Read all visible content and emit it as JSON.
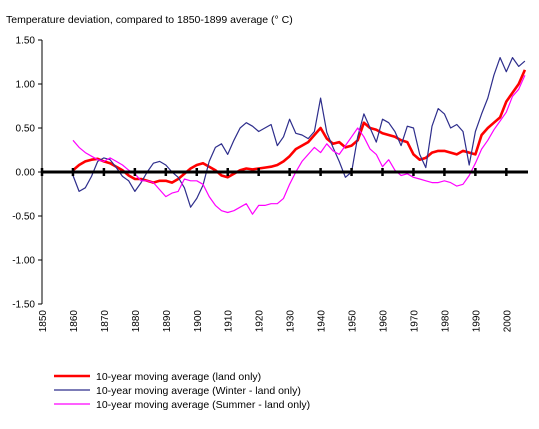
{
  "chart_data": {
    "type": "line",
    "title": "Temperature deviation, compared to 1850-1899 average (° C)",
    "xlabel": "",
    "ylabel": "",
    "xlim": [
      1850,
      2007
    ],
    "ylim": [
      -1.5,
      1.5
    ],
    "x_ticks": [
      "1850",
      "1860",
      "1870",
      "1880",
      "1890",
      "1900",
      "1910",
      "1920",
      "1930",
      "1940",
      "1950",
      "1960",
      "1970",
      "1980",
      "1990",
      "2000"
    ],
    "y_ticks": [
      "1.50",
      "1.00",
      "0.50",
      "0.00",
      "-0.50",
      "-1.00",
      "-1.50"
    ],
    "grid": false,
    "legend_position": "bottom-left",
    "series": [
      {
        "name": "10-year moving average (land only)",
        "color": "#ff0000",
        "x": [
          1860,
          1862,
          1864,
          1866,
          1868,
          1870,
          1872,
          1874,
          1876,
          1878,
          1880,
          1882,
          1884,
          1886,
          1888,
          1890,
          1892,
          1894,
          1896,
          1898,
          1900,
          1902,
          1904,
          1906,
          1908,
          1910,
          1912,
          1914,
          1916,
          1918,
          1920,
          1922,
          1924,
          1926,
          1928,
          1930,
          1932,
          1934,
          1936,
          1938,
          1940,
          1942,
          1944,
          1946,
          1948,
          1950,
          1952,
          1954,
          1956,
          1958,
          1960,
          1962,
          1964,
          1966,
          1968,
          1970,
          1972,
          1974,
          1976,
          1978,
          1980,
          1982,
          1984,
          1986,
          1988,
          1990,
          1992,
          1994,
          1996,
          1998,
          2000,
          2002,
          2004,
          2006
        ],
        "values": [
          0.02,
          0.08,
          0.12,
          0.14,
          0.15,
          0.12,
          0.1,
          0.06,
          0.02,
          -0.04,
          -0.08,
          -0.08,
          -0.1,
          -0.12,
          -0.1,
          -0.1,
          -0.12,
          -0.08,
          -0.02,
          0.04,
          0.08,
          0.1,
          0.06,
          0.02,
          -0.04,
          -0.06,
          -0.02,
          0.02,
          0.04,
          0.03,
          0.04,
          0.05,
          0.06,
          0.08,
          0.12,
          0.18,
          0.26,
          0.3,
          0.34,
          0.42,
          0.5,
          0.38,
          0.32,
          0.34,
          0.28,
          0.3,
          0.36,
          0.56,
          0.5,
          0.48,
          0.44,
          0.42,
          0.4,
          0.36,
          0.34,
          0.2,
          0.14,
          0.16,
          0.22,
          0.24,
          0.24,
          0.22,
          0.2,
          0.24,
          0.22,
          0.2,
          0.42,
          0.5,
          0.56,
          0.62,
          0.8,
          0.9,
          1.0,
          1.16
        ]
      },
      {
        "name": "10-year moving average (Winter - land only)",
        "color": "#2e2e8c",
        "x": [
          1860,
          1862,
          1864,
          1866,
          1868,
          1870,
          1872,
          1874,
          1876,
          1878,
          1880,
          1882,
          1884,
          1886,
          1888,
          1890,
          1892,
          1894,
          1896,
          1898,
          1900,
          1902,
          1904,
          1906,
          1908,
          1910,
          1912,
          1914,
          1916,
          1918,
          1920,
          1922,
          1924,
          1926,
          1928,
          1930,
          1932,
          1934,
          1936,
          1938,
          1940,
          1942,
          1944,
          1946,
          1948,
          1950,
          1952,
          1954,
          1956,
          1958,
          1960,
          1962,
          1964,
          1966,
          1968,
          1970,
          1972,
          1974,
          1976,
          1978,
          1980,
          1982,
          1984,
          1986,
          1988,
          1990,
          1992,
          1994,
          1996,
          1998,
          2000,
          2002,
          2004,
          2006
        ],
        "values": [
          -0.04,
          -0.22,
          -0.18,
          -0.05,
          0.12,
          0.16,
          0.14,
          0.05,
          -0.05,
          -0.1,
          -0.22,
          -0.12,
          0.0,
          0.1,
          0.12,
          0.08,
          0.0,
          -0.06,
          -0.18,
          -0.4,
          -0.3,
          -0.15,
          0.12,
          0.28,
          0.32,
          0.2,
          0.36,
          0.5,
          0.56,
          0.52,
          0.46,
          0.5,
          0.54,
          0.3,
          0.4,
          0.6,
          0.44,
          0.42,
          0.38,
          0.46,
          0.84,
          0.45,
          0.28,
          0.12,
          -0.06,
          0.0,
          0.4,
          0.66,
          0.5,
          0.34,
          0.6,
          0.56,
          0.46,
          0.3,
          0.52,
          0.5,
          0.2,
          0.05,
          0.52,
          0.72,
          0.66,
          0.5,
          0.54,
          0.46,
          0.08,
          0.46,
          0.66,
          0.84,
          1.1,
          1.3,
          1.14,
          1.3,
          1.2,
          1.26
        ]
      },
      {
        "name": "10-year moving average (Summer - land only)",
        "color": "#ff00ff",
        "x": [
          1860,
          1862,
          1864,
          1866,
          1868,
          1870,
          1872,
          1874,
          1876,
          1878,
          1880,
          1882,
          1884,
          1886,
          1888,
          1890,
          1892,
          1894,
          1896,
          1898,
          1900,
          1902,
          1904,
          1906,
          1908,
          1910,
          1912,
          1914,
          1916,
          1918,
          1920,
          1922,
          1924,
          1926,
          1928,
          1930,
          1932,
          1934,
          1936,
          1938,
          1940,
          1942,
          1944,
          1946,
          1948,
          1950,
          1952,
          1954,
          1956,
          1958,
          1960,
          1962,
          1964,
          1966,
          1968,
          1970,
          1972,
          1974,
          1976,
          1978,
          1980,
          1982,
          1984,
          1986,
          1988,
          1990,
          1992,
          1994,
          1996,
          1998,
          2000,
          2002,
          2004,
          2006
        ],
        "values": [
          0.36,
          0.28,
          0.22,
          0.18,
          0.14,
          0.12,
          0.16,
          0.12,
          0.08,
          0.02,
          -0.02,
          -0.1,
          -0.1,
          -0.12,
          -0.2,
          -0.28,
          -0.24,
          -0.22,
          -0.08,
          -0.1,
          -0.1,
          -0.14,
          -0.28,
          -0.38,
          -0.44,
          -0.46,
          -0.44,
          -0.4,
          -0.36,
          -0.48,
          -0.38,
          -0.38,
          -0.36,
          -0.36,
          -0.3,
          -0.14,
          0.0,
          0.12,
          0.2,
          0.28,
          0.22,
          0.32,
          0.24,
          0.2,
          0.3,
          0.4,
          0.5,
          0.4,
          0.26,
          0.2,
          0.06,
          0.14,
          0.02,
          -0.04,
          -0.02,
          -0.06,
          -0.08,
          -0.1,
          -0.12,
          -0.12,
          -0.1,
          -0.12,
          -0.16,
          -0.14,
          -0.04,
          0.1,
          0.26,
          0.36,
          0.48,
          0.58,
          0.68,
          0.86,
          0.94,
          1.1
        ]
      }
    ]
  }
}
